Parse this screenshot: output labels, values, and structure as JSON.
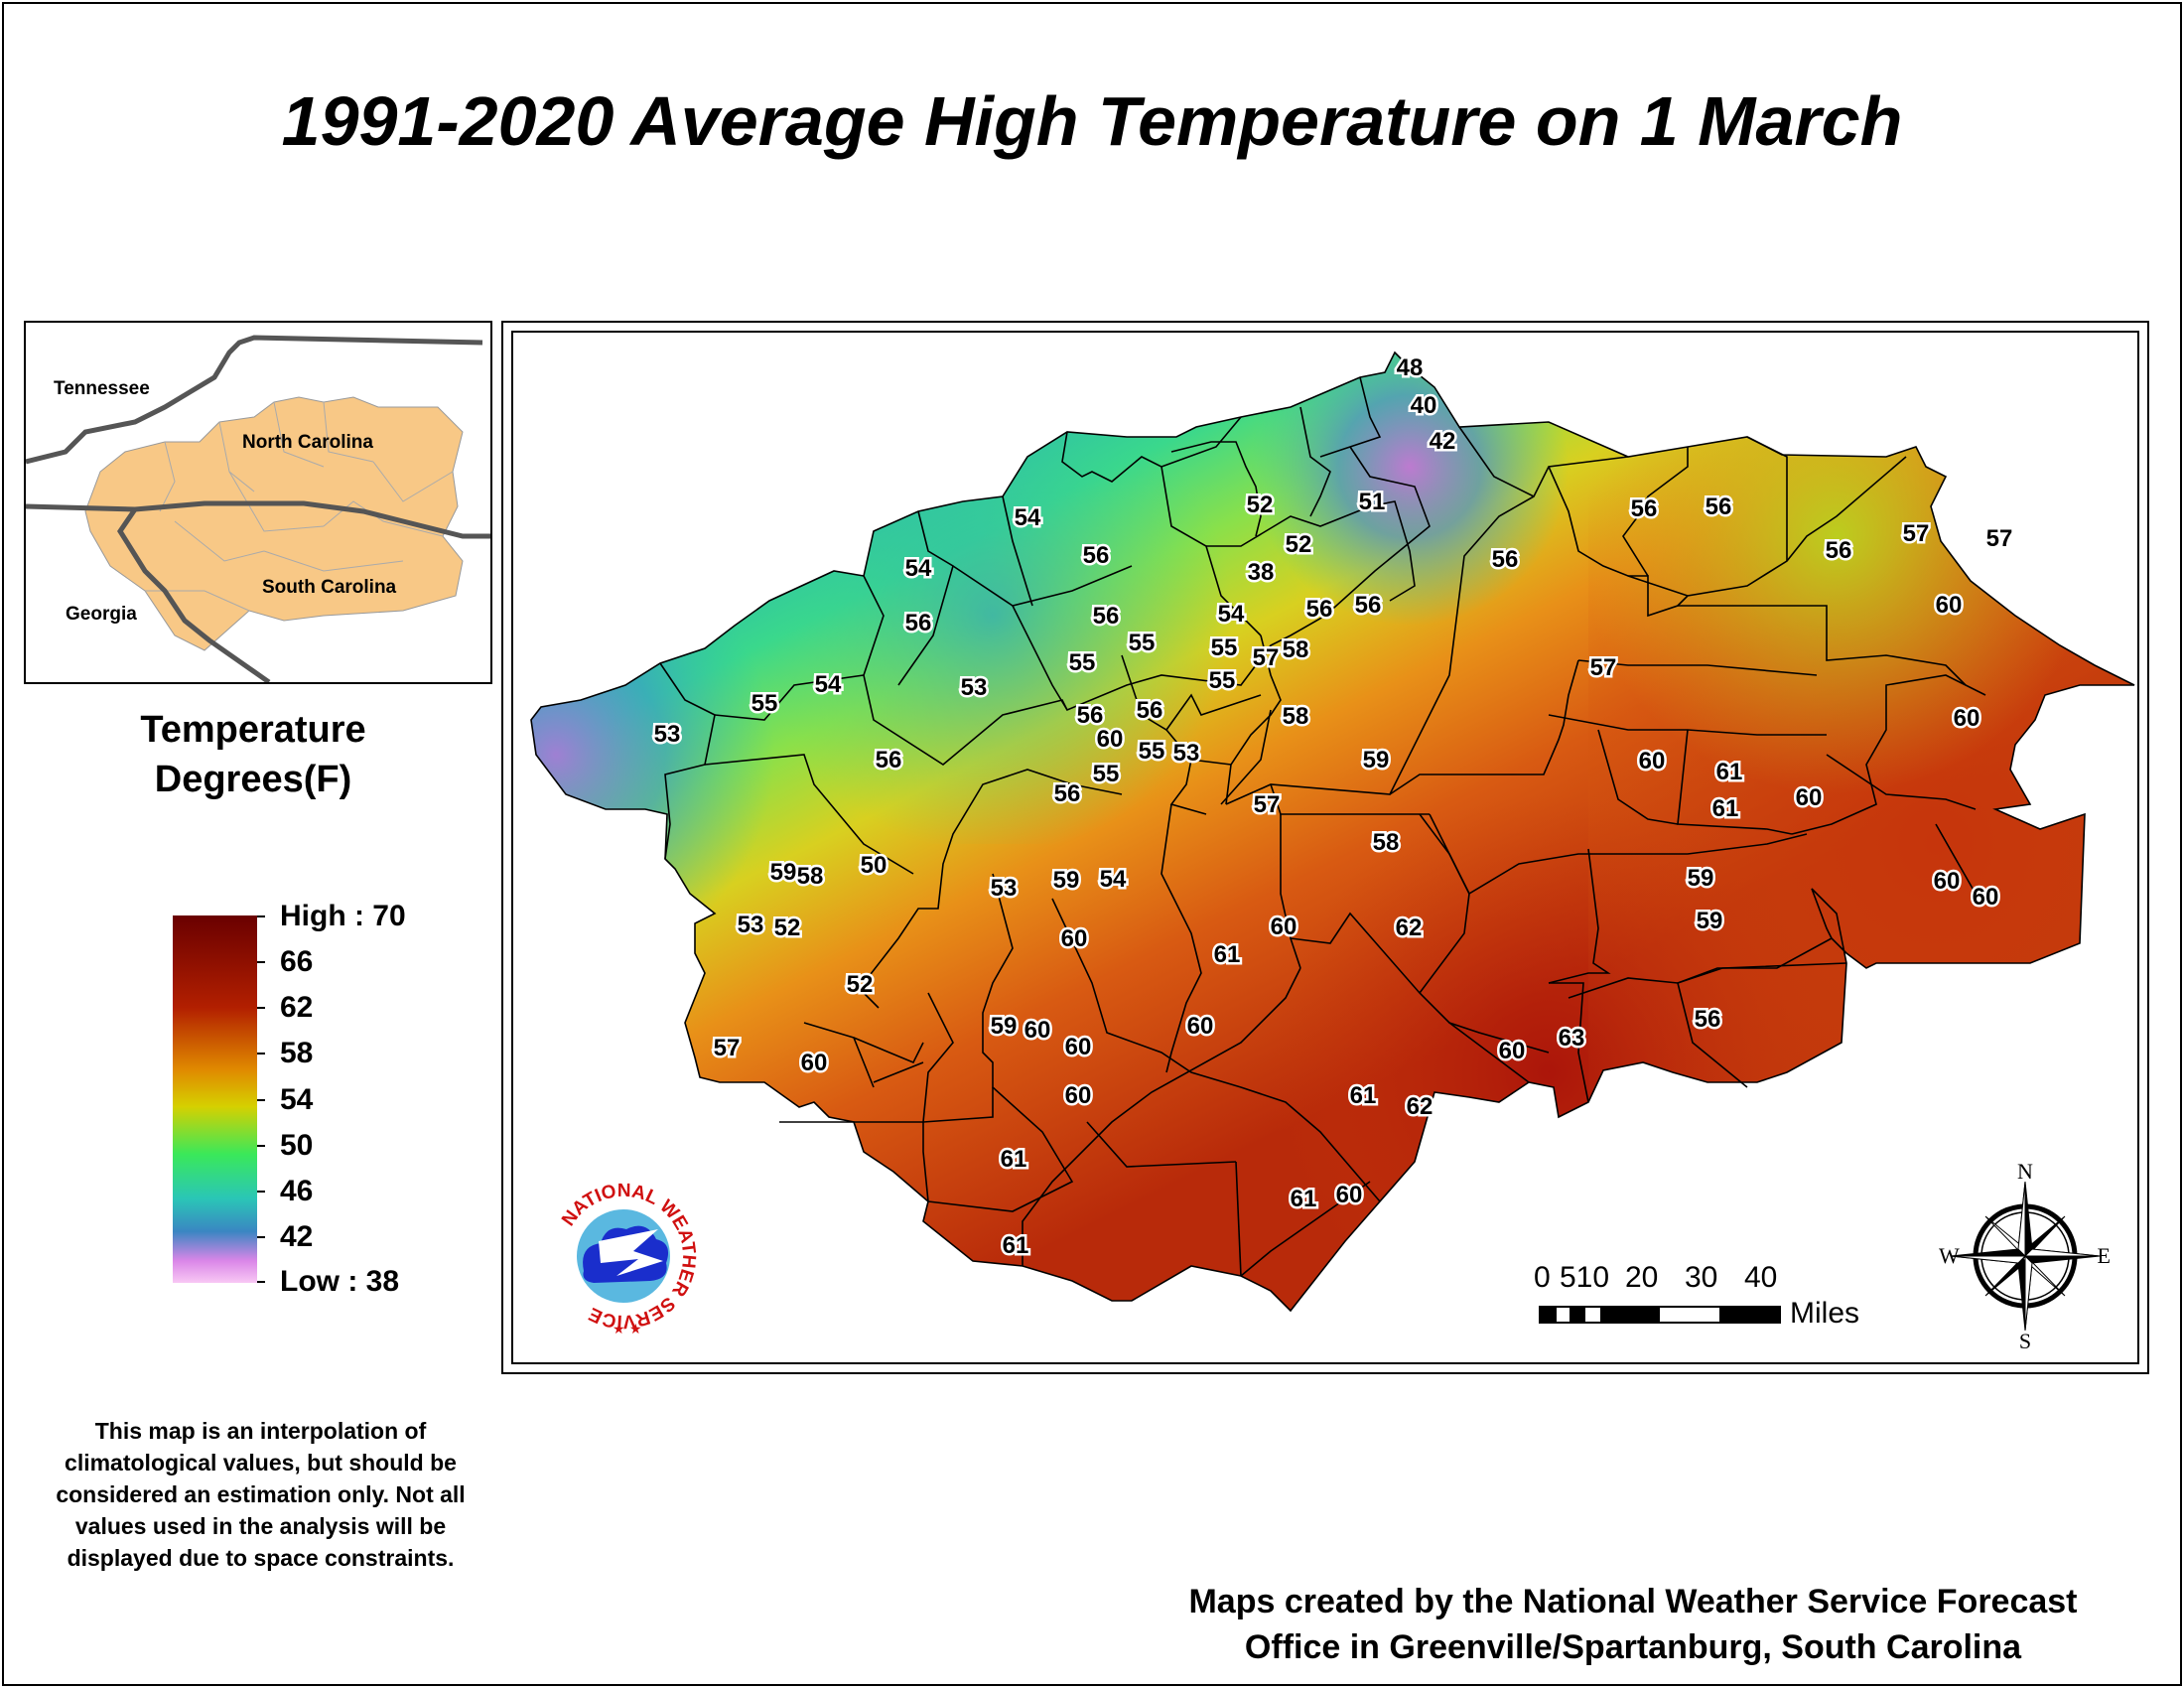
{
  "title": "1991-2020 Average High Temperature on 1 March",
  "inset": {
    "labels": [
      "Tennessee",
      "North Carolina",
      "Georgia",
      "South Carolina"
    ]
  },
  "legend": {
    "title_line1": "Temperature",
    "title_line2": "Degrees(F)",
    "high_label": "High : 70",
    "low_label": "Low : 38",
    "ticks": [
      "66",
      "62",
      "58",
      "54",
      "50",
      "46",
      "42"
    ],
    "color_high": "#6a0000",
    "color_low": "#f8c8f4"
  },
  "map": {
    "temperature_labels": [
      "48",
      "40",
      "42",
      "51",
      "52",
      "52",
      "38",
      "54",
      "56",
      "56",
      "56",
      "56",
      "57",
      "57",
      "56",
      "56",
      "56",
      "57",
      "58",
      "54",
      "55",
      "55",
      "55",
      "56",
      "56",
      "54",
      "56",
      "54",
      "55",
      "53",
      "55",
      "56",
      "53",
      "55",
      "53",
      "56",
      "56",
      "55",
      "58",
      "59",
      "60",
      "57",
      "60",
      "61",
      "61",
      "60",
      "60",
      "58",
      "57",
      "53",
      "52",
      "50",
      "58",
      "59",
      "60",
      "59",
      "60",
      "61",
      "54",
      "53",
      "52",
      "57",
      "59",
      "59",
      "60",
      "60",
      "62",
      "60",
      "63",
      "60",
      "60",
      "60",
      "59",
      "60",
      "61",
      "62",
      "60",
      "60",
      "61",
      "61",
      "60",
      "61",
      "56"
    ]
  },
  "logo": {
    "text": "NATIONAL WEATHER SERVICE"
  },
  "scale": {
    "numbers": [
      "0",
      "510",
      "20",
      "30",
      "40"
    ],
    "units": "Miles"
  },
  "compass": {
    "n": "N",
    "s": "S",
    "e": "E",
    "w": "W"
  },
  "disclaimer": "This map is an interpolation of climatological values, but should be considered an estimation only. Not all values used in the analysis will be displayed due to space constraints.",
  "credit": {
    "line1": "Maps created by the National Weather Service Forecast",
    "line2": "Office in Greenville/Spartanburg, South Carolina"
  }
}
